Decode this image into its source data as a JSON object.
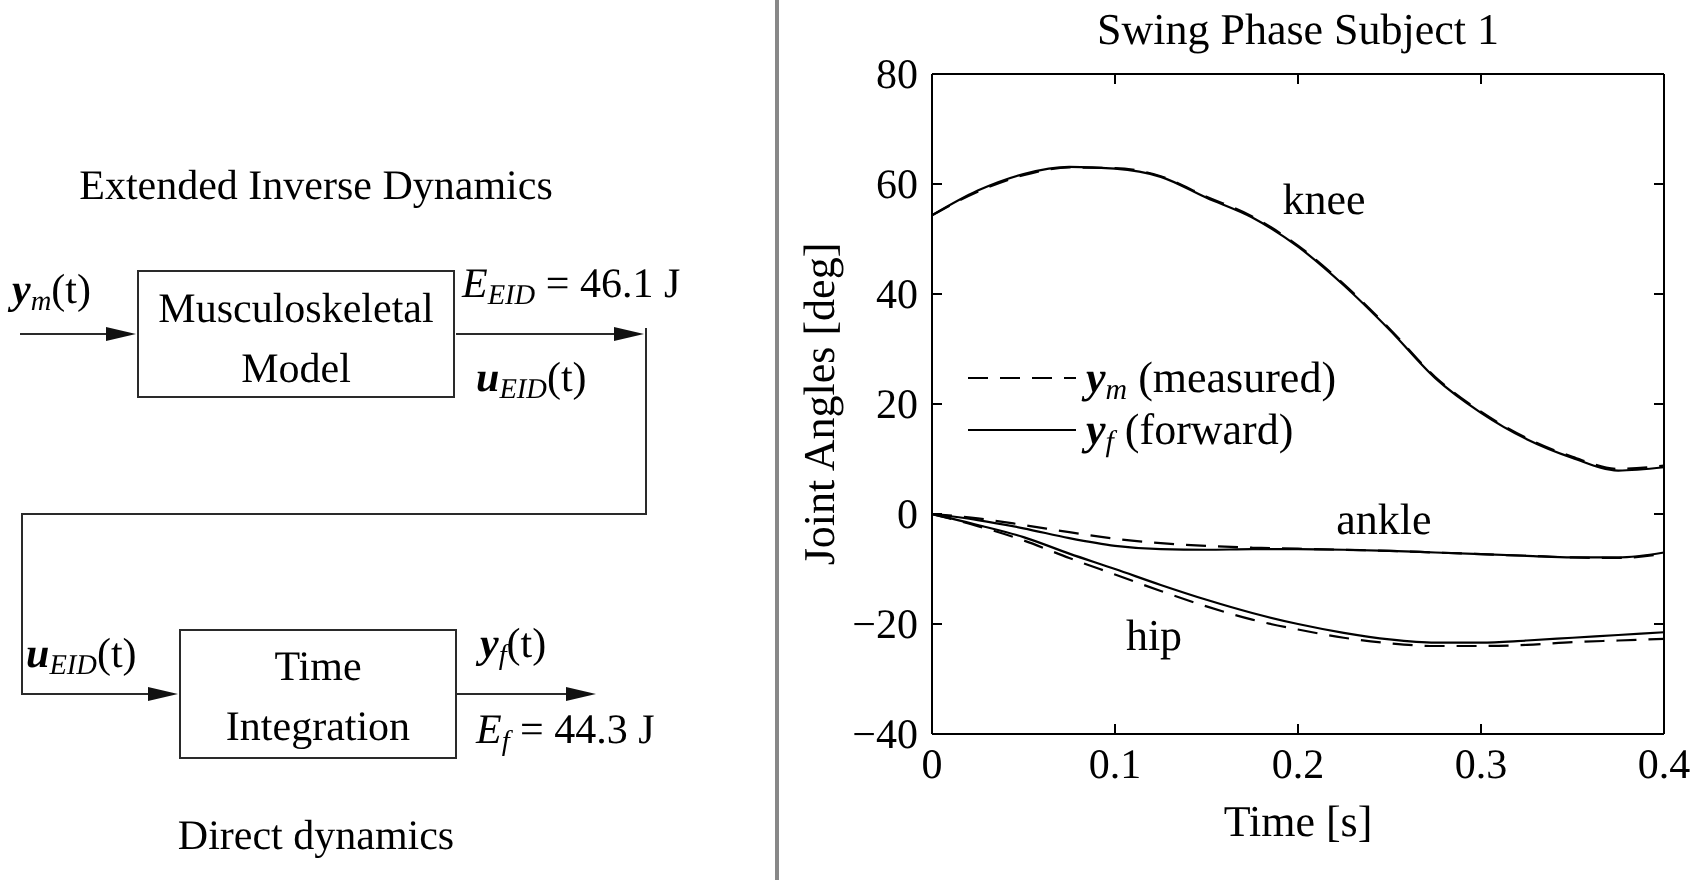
{
  "chart_data": [
    {
      "type": "other",
      "annotations": [
        "Extended Inverse Dynamics",
        "y$_{m}$(t)",
        "Musculoskeletal Model",
        "E$_{EID}$ = 46.1 J",
        "u$_{EID}$(t)",
        "u$_{EID}$(t)",
        "Time Integration",
        "y$_{f}$(t)",
        "E$_{f}$ = 44.3 J",
        "Direct dynamics"
      ]
    },
    {
      "type": "line",
      "title": "Swing Phase Subject 1",
      "xlabel": "Time [s]",
      "ylabel": "Joint Angles [deg]",
      "x": [
        0,
        0.025,
        0.05,
        0.075,
        0.1,
        0.125,
        0.15,
        0.175,
        0.2,
        0.225,
        0.25,
        0.275,
        0.3,
        0.325,
        0.35,
        0.375,
        0.4
      ],
      "xlim": [
        0,
        0.4
      ],
      "xticks": [
        0,
        0.1,
        0.2,
        0.3,
        0.4
      ],
      "ylim": [
        -40,
        80
      ],
      "yticks": [
        {
          "value": -40,
          "label": "−40"
        },
        {
          "value": -20,
          "label": "−20"
        },
        0,
        20,
        40,
        60,
        80
      ],
      "legend": "left",
      "series": [
        {
          "name": "y$_{m}$ (measured)",
          "color": "#000000",
          "line_style": "dashed",
          "values": [
            54.3,
            58.6,
            61.6,
            63.0,
            62.9,
            61.4,
            57.7,
            54.1,
            48.8,
            41.8,
            33.7,
            24.9,
            18.6,
            13.8,
            10.4,
            8.2,
            8.8
          ]
        },
        {
          "name": "y$_{f}$ (forward)",
          "color": "#000000",
          "values": [
            54.3,
            58.8,
            61.8,
            63.1,
            62.8,
            61.3,
            57.5,
            53.9,
            48.6,
            41.6,
            33.5,
            24.7,
            18.4,
            13.6,
            10.2,
            7.9,
            8.5
          ]
        },
        {
          "color": "#000000",
          "line_style": "dashed",
          "values": [
            0,
            -0.8,
            -2.0,
            -3.3,
            -4.5,
            -5.3,
            -5.8,
            -6.1,
            -6.3,
            -6.5,
            -6.7,
            -7.0,
            -7.3,
            -7.6,
            -7.9,
            -8.0,
            -7.2
          ]
        },
        {
          "color": "#000000",
          "values": [
            0,
            -1.1,
            -2.6,
            -4.4,
            -5.8,
            -6.4,
            -6.5,
            -6.4,
            -6.4,
            -6.5,
            -6.7,
            -7.0,
            -7.3,
            -7.6,
            -7.9,
            -7.9,
            -7.0
          ]
        },
        {
          "color": "#000000",
          "line_style": "dashed",
          "values": [
            0,
            -2.2,
            -4.8,
            -8.0,
            -11.0,
            -14.0,
            -16.8,
            -19.2,
            -21.0,
            -22.5,
            -23.5,
            -24.0,
            -24.0,
            -23.8,
            -23.3,
            -23.0,
            -22.7
          ]
        },
        {
          "color": "#000000",
          "values": [
            0,
            -2.0,
            -4.2,
            -7.2,
            -10.0,
            -12.9,
            -15.6,
            -18.0,
            -20.0,
            -21.6,
            -22.8,
            -23.4,
            -23.4,
            -23.0,
            -22.5,
            -22.0,
            -21.5
          ]
        }
      ],
      "annotations": [
        "knee",
        "ankle",
        "hip"
      ]
    }
  ]
}
